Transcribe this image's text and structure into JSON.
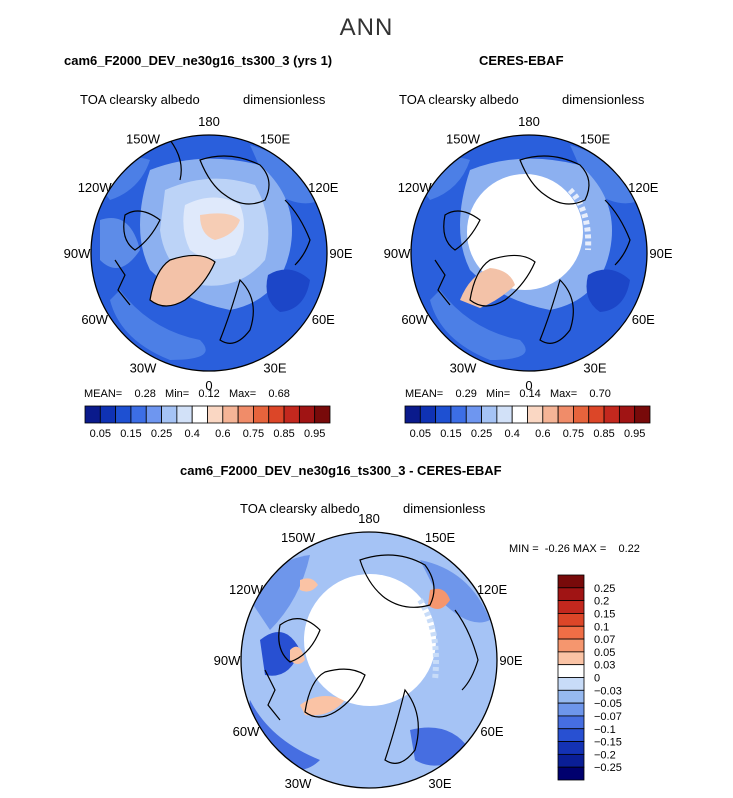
{
  "main_title": "ANN",
  "panel_a": {
    "title": "cam6_F2000_DEV_ne30g16_ts300_3 (yrs 1)",
    "left_label": "TOA clearsky albedo",
    "right_label": "dimensionless",
    "stats": {
      "mean_label": "MEAN=",
      "mean": "0.28",
      "min_label": "Min=",
      "min": "0.12",
      "max_label": "Max=",
      "max": "0.68"
    }
  },
  "panel_b": {
    "title": "CERES-EBAF",
    "left_label": "TOA clearsky albedo",
    "right_label": "dimensionless",
    "stats": {
      "mean_label": "MEAN=",
      "mean": "0.29",
      "min_label": "Min=",
      "min": "0.14",
      "max_label": "Max=",
      "max": "0.70"
    }
  },
  "panel_c": {
    "title": "cam6_F2000_DEV_ne30g16_ts300_3 - CERES-EBAF",
    "left_label": "TOA clearsky albedo",
    "right_label": "dimensionless",
    "stats": {
      "min_label": "MIN =",
      "min": "-0.26",
      "max_label": "MAX =",
      "max": "0.22"
    }
  },
  "lon_labels": [
    "180",
    "150E",
    "120E",
    "90E",
    "60E",
    "30E",
    "0",
    "30W",
    "60W",
    "90W",
    "120W",
    "150W"
  ],
  "colorbar_top": {
    "labels": [
      "0.05",
      "0.15",
      "0.25",
      "0.4",
      "0.6",
      "0.75",
      "0.85",
      "0.95"
    ],
    "colors": [
      "#0a1a8c",
      "#0f32b4",
      "#1e50d2",
      "#3c6ee6",
      "#6e96f0",
      "#a5c3f5",
      "#d2e1f8",
      "#ffffff",
      "#fad7c3",
      "#f5b496",
      "#f08c69",
      "#e6643c",
      "#dc4628",
      "#c3281e",
      "#a01414",
      "#780a0a"
    ]
  },
  "colorbar_diff": {
    "labels": [
      "0.25",
      "0.2",
      "0.15",
      "0.1",
      "0.07",
      "0.05",
      "0.03",
      "0",
      "-0.03",
      "-0.05",
      "-0.07",
      "-0.1",
      "-0.15",
      "-0.2",
      "-0.25"
    ],
    "colors": [
      "#780a0a",
      "#a01414",
      "#c3281e",
      "#dc4628",
      "#f06e46",
      "#f5966e",
      "#fac3a5",
      "#ffffff",
      "#c8dcf8",
      "#96b9f0",
      "#6e96eb",
      "#466ee1",
      "#2850d2",
      "#1432b4",
      "#0a1e96",
      "#00006e"
    ]
  },
  "chart_data": [
    {
      "type": "heatmap",
      "title": "cam6_F2000_DEV_ne30g16_ts300_3 (yrs 1)",
      "projection": "north polar stereographic",
      "variable": "TOA clearsky albedo",
      "units": "dimensionless",
      "stats": {
        "mean": 0.28,
        "min": 0.12,
        "max": 0.68
      },
      "contour_levels": [
        0.05,
        0.1,
        0.15,
        0.2,
        0.25,
        0.3,
        0.35,
        0.4,
        0.5,
        0.6,
        0.7,
        0.75,
        0.8,
        0.85,
        0.9,
        0.95
      ]
    },
    {
      "type": "heatmap",
      "title": "CERES-EBAF",
      "projection": "north polar stereographic",
      "variable": "TOA clearsky albedo",
      "units": "dimensionless",
      "stats": {
        "mean": 0.29,
        "min": 0.14,
        "max": 0.7
      },
      "contour_levels": [
        0.05,
        0.1,
        0.15,
        0.2,
        0.25,
        0.3,
        0.35,
        0.4,
        0.5,
        0.6,
        0.7,
        0.75,
        0.8,
        0.85,
        0.9,
        0.95
      ]
    },
    {
      "type": "heatmap",
      "title": "cam6_F2000_DEV_ne30g16_ts300_3 - CERES-EBAF",
      "projection": "north polar stereographic",
      "variable": "TOA clearsky albedo",
      "units": "dimensionless",
      "stats": {
        "min": -0.26,
        "max": 0.22
      },
      "contour_levels": [
        -0.25,
        -0.2,
        -0.15,
        -0.1,
        -0.07,
        -0.05,
        -0.03,
        0,
        0.03,
        0.05,
        0.07,
        0.1,
        0.15,
        0.2,
        0.25
      ]
    }
  ]
}
